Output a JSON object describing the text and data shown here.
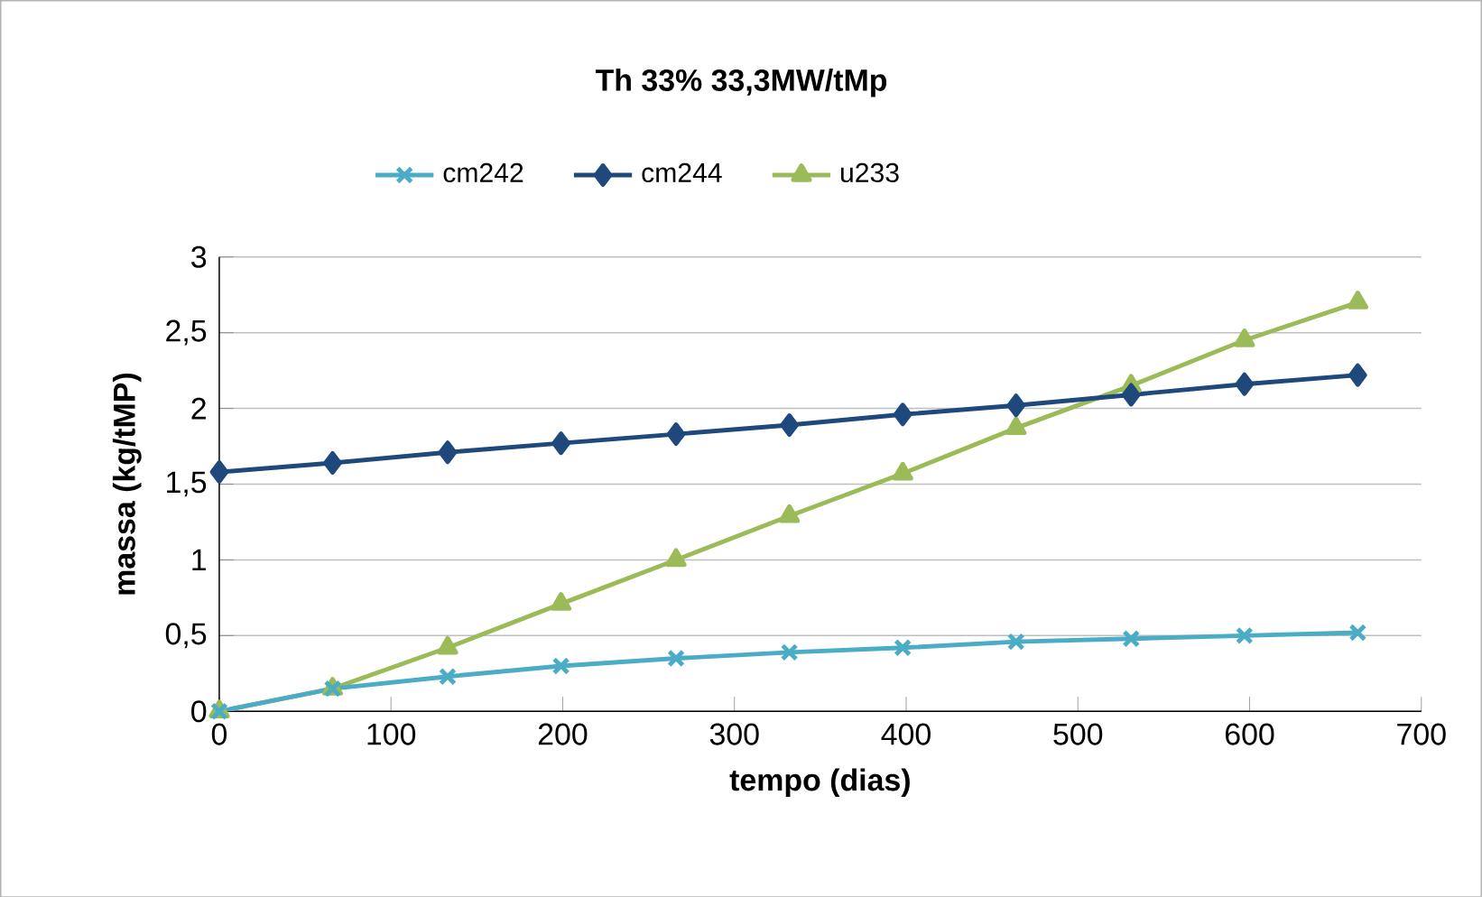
{
  "chart_data": {
    "type": "line",
    "title": "Th 33%    33,3MW/tMp",
    "xlabel": "tempo (dias)",
    "ylabel": "massa  (kg/tMP)",
    "xlim": [
      0,
      700
    ],
    "xticks": [
      0,
      100,
      200,
      300,
      400,
      500,
      600,
      700
    ],
    "ylim": [
      0,
      3
    ],
    "yticks": [
      0,
      {
        "value": 0.5,
        "label": "0,5"
      },
      1,
      {
        "value": 1.5,
        "label": "1,5"
      },
      2,
      {
        "value": 2.5,
        "label": "2,5"
      },
      3
    ],
    "grid": "y",
    "legend": "top",
    "x": [
      0,
      66,
      133,
      199,
      266,
      332,
      398,
      464,
      531,
      597,
      663
    ],
    "series": [
      {
        "name": "cm242",
        "color": "#4bacc6",
        "marker": "cross",
        "values": [
          0,
          0.15,
          0.23,
          0.3,
          0.35,
          0.39,
          0.42,
          0.46,
          0.48,
          0.5,
          0.52
        ]
      },
      {
        "name": "cm244",
        "color": "#1f497d",
        "marker": "diamond",
        "values": [
          1.58,
          1.64,
          1.71,
          1.77,
          1.83,
          1.89,
          1.96,
          2.02,
          2.09,
          2.16,
          2.22
        ]
      },
      {
        "name": "u233",
        "color": "#9bbb59",
        "marker": "triangle",
        "values": [
          0,
          0.15,
          0.42,
          0.71,
          1.0,
          1.29,
          1.57,
          1.87,
          2.15,
          2.45,
          2.7
        ]
      }
    ]
  }
}
